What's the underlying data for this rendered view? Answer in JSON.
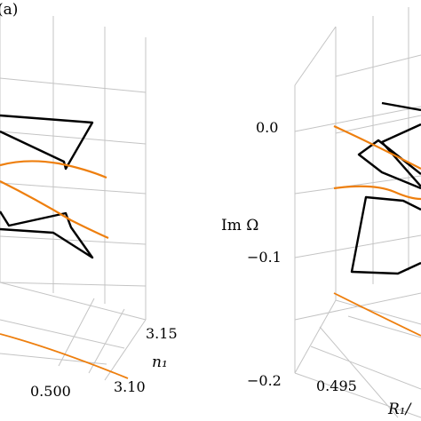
{
  "colors": {
    "background": "#ffffff",
    "grid": "#c4c4c4",
    "loop": "#000000",
    "curve": "#ee7f0e"
  },
  "chart_data": [
    {
      "type": "line",
      "panel_label": "(a)",
      "y_axis_label": "",
      "y_ticks": [],
      "x_axis_label": "",
      "x_ticks": [
        "0.500"
      ],
      "depth_axis_label": "n₁",
      "depth_ticks": [
        "3.15",
        "3.10"
      ],
      "grid": true,
      "series": [
        {
          "role": "black closed loop, upper",
          "color": "#000000"
        },
        {
          "role": "black closed loop, lower",
          "color": "#000000"
        },
        {
          "role": "orange curve, upper",
          "color": "#ee7f0e"
        },
        {
          "role": "orange curve, lower",
          "color": "#ee7f0e"
        },
        {
          "role": "orange projection on floor",
          "color": "#ee7f0e"
        }
      ]
    },
    {
      "type": "line",
      "panel_label": "",
      "y_axis_label": "Im Ω",
      "y_ticks": [
        "0.0",
        "−0.1",
        "−0.2"
      ],
      "x_axis_label": "R₁/",
      "x_ticks": [
        "0.495"
      ],
      "depth_axis_label": "",
      "depth_ticks": [],
      "grid": true,
      "series": [
        {
          "role": "black closed loop",
          "color": "#000000"
        },
        {
          "role": "orange curve, upper",
          "color": "#ee7f0e"
        },
        {
          "role": "orange curve, lower",
          "color": "#ee7f0e"
        },
        {
          "role": "orange projection on floor",
          "color": "#ee7f0e"
        }
      ]
    }
  ]
}
